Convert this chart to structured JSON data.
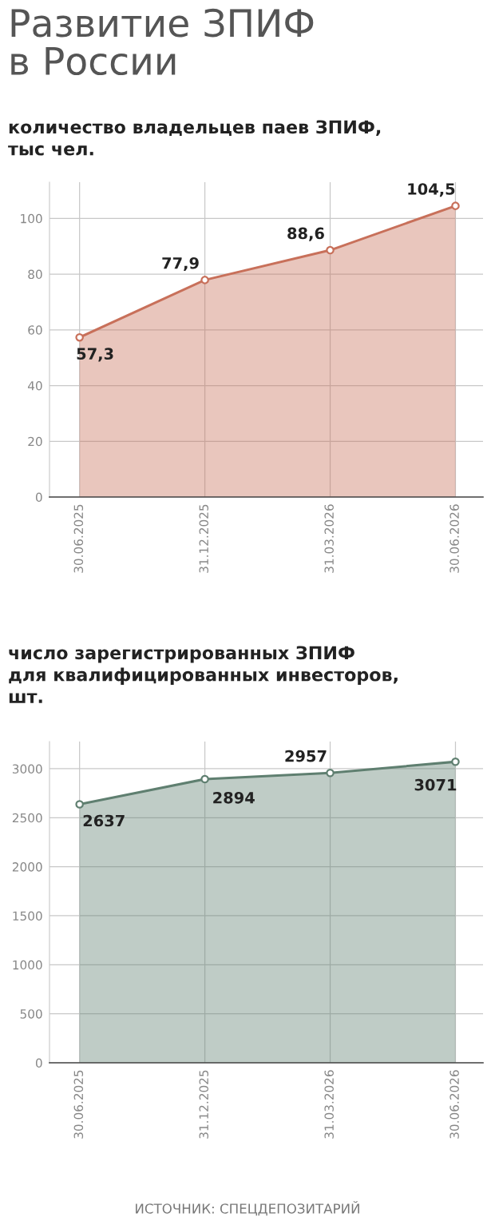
{
  "chart_data": [
    {
      "type": "area",
      "title": "Развитие ЗПИФ\nв России",
      "subtitle": "количество владельцев паев ЗПИФ,\nтыс чел.",
      "categories": [
        "30.06.2025",
        "31.12.2025",
        "31.03.2026",
        "30.06.2026"
      ],
      "series": [
        {
          "color": "#c8705a",
          "values": [
            57.3,
            77.9,
            88.6,
            104.5
          ]
        }
      ],
      "value_labels": [
        "57,3",
        "77,9",
        "88,6",
        "104,5"
      ],
      "ylim": [
        0,
        113
      ],
      "yticks": [
        0,
        20,
        40,
        60,
        80,
        100
      ],
      "grid": true,
      "marker": "circle"
    },
    {
      "type": "area",
      "subtitle": "число зарегистрированных ЗПИФ\nдля квалифицированных инвесторов,\nшт.",
      "categories": [
        "30.06.2025",
        "31.12.2025",
        "31.03.2026",
        "30.06.2026"
      ],
      "series": [
        {
          "color": "#5f7f70",
          "values": [
            2637,
            2894,
            2957,
            3071
          ]
        }
      ],
      "data_labels": true,
      "ylim": [
        0,
        3277
      ],
      "yticks": [
        0,
        500,
        1000,
        1500,
        2000,
        2500,
        3000
      ],
      "grid": true,
      "marker": "circle",
      "annotations": [
        "ИСТОЧНИК: СПЕЦДЕПОЗИТАРИЙ"
      ]
    }
  ]
}
